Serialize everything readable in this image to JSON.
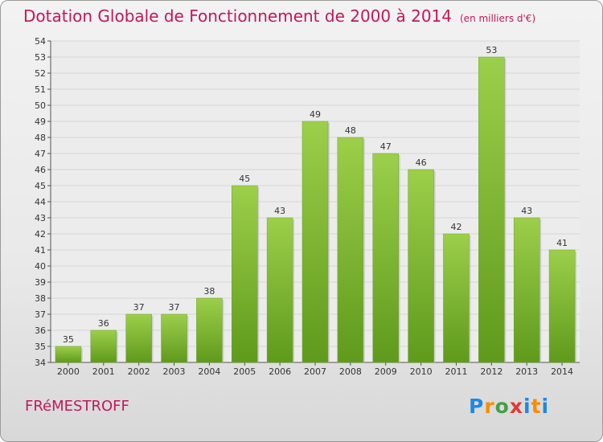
{
  "header": {
    "title": "Dotation Globale de Fonctionnement de 2000 à 2014",
    "unit": "(en milliers d'€)"
  },
  "commune": "FRéMESTROFF",
  "logo": {
    "p": "P",
    "r": "r",
    "o": "o",
    "x": "x",
    "i": "i",
    "t": "t",
    "i2": "i"
  },
  "chart_data": {
    "type": "bar",
    "title": "Dotation Globale de Fonctionnement de 2000 à 2014",
    "subtitle": "(en milliers d'€)",
    "xlabel": "",
    "ylabel": "",
    "ylim": [
      34,
      54
    ],
    "yticks": [
      34,
      35,
      36,
      37,
      38,
      39,
      40,
      41,
      42,
      43,
      44,
      45,
      46,
      47,
      48,
      49,
      50,
      51,
      52,
      53,
      54
    ],
    "grid": true,
    "categories": [
      "2000",
      "2001",
      "2002",
      "2003",
      "2004",
      "2005",
      "2006",
      "2007",
      "2008",
      "2009",
      "2010",
      "2011",
      "2012",
      "2013",
      "2014"
    ],
    "values": [
      35,
      36,
      37,
      37,
      38,
      45,
      43,
      49,
      48,
      47,
      46,
      42,
      53,
      43,
      41
    ],
    "colors": {
      "bar_top": "#9ccf4a",
      "bar_bottom": "#5f9a1c",
      "text": "#c2185b",
      "grid": "#d6d6d6"
    }
  }
}
